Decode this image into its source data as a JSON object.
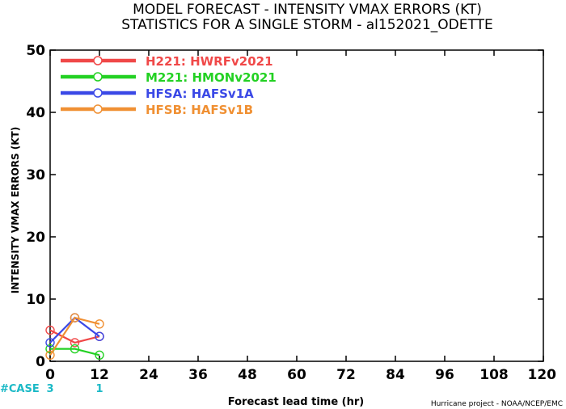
{
  "chart_data": {
    "type": "line",
    "title": "MODEL FORECAST - INTENSITY VMAX ERRORS (KT)",
    "subtitle": "STATISTICS FOR A SINGLE STORM - al152021_ODETTE",
    "xlabel": "Forecast lead time (hr)",
    "ylabel": "INTENSITY VMAX ERRORS (KT)",
    "xlim": [
      0,
      120
    ],
    "ylim": [
      0,
      50
    ],
    "xticks": [
      "0",
      "12",
      "24",
      "36",
      "48",
      "60",
      "72",
      "84",
      "96",
      "108",
      "120"
    ],
    "yticks": [
      "0",
      "10",
      "20",
      "30",
      "40",
      "50"
    ],
    "grid": false,
    "legend_position": "top-left",
    "series": [
      {
        "name": "H221: HWRFv2021",
        "color": "#f04848",
        "x": [
          0,
          6,
          12
        ],
        "y": [
          5,
          3,
          4
        ]
      },
      {
        "name": "M221: HMONv2021",
        "color": "#23d123",
        "x": [
          0,
          6,
          12
        ],
        "y": [
          2,
          2,
          1
        ]
      },
      {
        "name": "HFSA: HAFSv1A",
        "color": "#3a48e6",
        "x": [
          0,
          6,
          12
        ],
        "y": [
          3,
          7,
          4
        ]
      },
      {
        "name": "HFSB: HAFSv1B",
        "color": "#f09033",
        "x": [
          0,
          6,
          12
        ],
        "y": [
          1,
          7,
          6
        ]
      }
    ],
    "cases": {
      "label": "#CASE",
      "values": [
        {
          "x": 0,
          "count": "3"
        },
        {
          "x": 12,
          "count": "1"
        }
      ]
    },
    "credit": "Hurricane project - NOAA/NCEP/EMC"
  }
}
